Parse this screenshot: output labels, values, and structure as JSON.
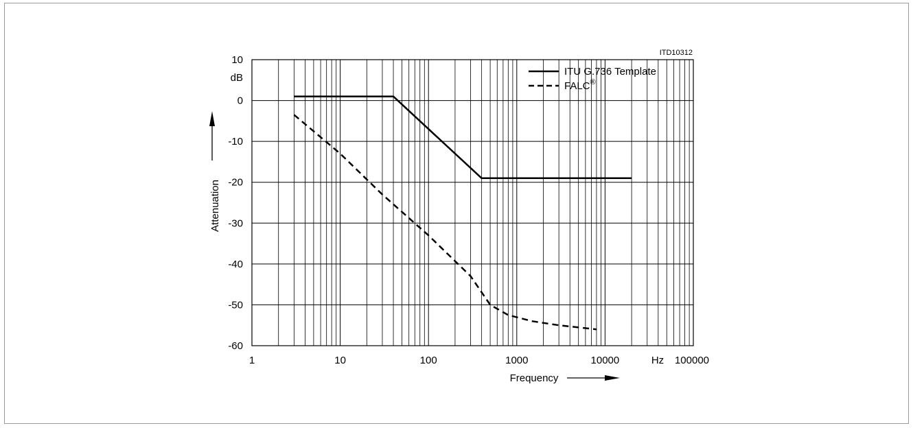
{
  "figure_id": "ITD10312",
  "chart_data": {
    "type": "line",
    "xscale": "log",
    "xlim": [
      1,
      100000
    ],
    "ylim": [
      -60,
      10
    ],
    "grid": true,
    "legend_position": "top-right",
    "xlabel": "Frequency",
    "ylabel": "Attenuation",
    "y_unit": "dB",
    "x_unit": "Hz",
    "x_ticks": [
      {
        "value": 1,
        "label": "1"
      },
      {
        "value": 10,
        "label": "10"
      },
      {
        "value": 100,
        "label": "100"
      },
      {
        "value": 1000,
        "label": "1000"
      },
      {
        "value": 10000,
        "label": "10000"
      },
      {
        "value": 100000,
        "label": "100000"
      }
    ],
    "y_ticks": [
      {
        "value": 10,
        "label": "10"
      },
      {
        "value": 0,
        "label": "0"
      },
      {
        "value": -10,
        "label": "-10"
      },
      {
        "value": -20,
        "label": "-20"
      },
      {
        "value": -30,
        "label": "-30"
      },
      {
        "value": -40,
        "label": "-40"
      },
      {
        "value": -50,
        "label": "-50"
      },
      {
        "value": -60,
        "label": "-60"
      }
    ],
    "series": [
      {
        "name": "ITU G.736 Template",
        "style": "solid",
        "color": "#000000",
        "points": [
          [
            3,
            1
          ],
          [
            40,
            1
          ],
          [
            400,
            -19
          ],
          [
            20000,
            -19
          ]
        ]
      },
      {
        "name": "FALC",
        "name_superscript": "®",
        "style": "dashed",
        "color": "#000000",
        "points": [
          [
            3,
            -3.5
          ],
          [
            10,
            -13
          ],
          [
            30,
            -23
          ],
          [
            100,
            -33
          ],
          [
            300,
            -43
          ],
          [
            500,
            -50
          ],
          [
            800,
            -52.5
          ],
          [
            1500,
            -54
          ],
          [
            3000,
            -55
          ],
          [
            8000,
            -56
          ]
        ]
      }
    ]
  }
}
